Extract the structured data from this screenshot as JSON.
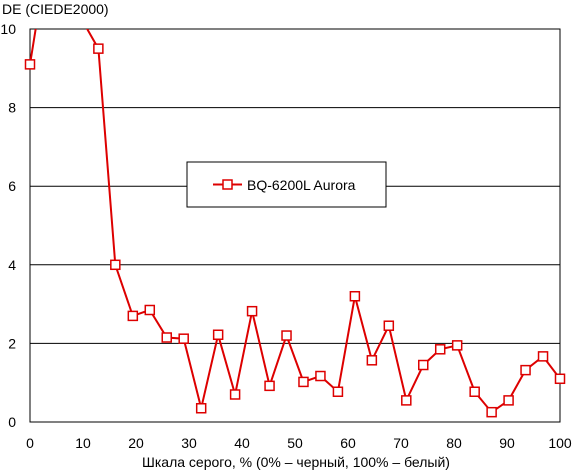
{
  "chart_data": {
    "type": "line",
    "title": "",
    "ylabel": "DE (CIEDE2000)",
    "xlabel": "Шкала серого, % (0% – черный, 100% – белый)",
    "xlim": [
      0,
      100
    ],
    "ylim": [
      0,
      10
    ],
    "x_ticks": [
      0,
      10,
      20,
      30,
      40,
      50,
      60,
      70,
      80,
      90,
      100
    ],
    "y_ticks": [
      0,
      2,
      4,
      6,
      8,
      10
    ],
    "grid": "horizontal",
    "legend_position": "center",
    "series": [
      {
        "name": "BQ-6200L Aurora",
        "color": "#dd0000",
        "marker": "square",
        "x": [
          0,
          3.2,
          12.9,
          16.1,
          19.4,
          22.6,
          25.8,
          29.0,
          32.3,
          35.5,
          38.7,
          41.9,
          45.2,
          48.4,
          51.6,
          54.8,
          58.1,
          61.3,
          64.5,
          67.7,
          71.0,
          74.2,
          77.4,
          80.6,
          83.9,
          87.1,
          90.3,
          93.5,
          96.8,
          100
        ],
        "y": [
          9.1,
          11.8,
          9.5,
          4.0,
          2.7,
          2.85,
          2.15,
          2.12,
          0.35,
          2.22,
          0.7,
          2.82,
          0.92,
          2.2,
          1.02,
          1.17,
          0.77,
          3.2,
          1.57,
          2.45,
          0.55,
          1.45,
          1.85,
          1.95,
          0.77,
          0.25,
          0.55,
          1.32,
          1.67,
          1.1
        ]
      }
    ]
  }
}
